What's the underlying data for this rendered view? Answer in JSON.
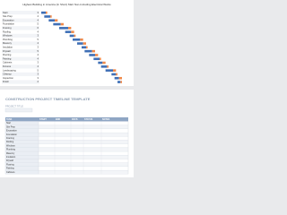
{
  "gantt": {
    "title": "Highest Building in America (In Short) Mart Non-Including Electrical Works",
    "xlim": [
      0,
      60
    ],
    "tasks": [
      {
        "name": "Start",
        "start": 0,
        "duration": 3,
        "delay": 1
      },
      {
        "name": "Site Prep",
        "start": 2,
        "duration": 4,
        "delay": 1
      },
      {
        "name": "Excavation",
        "start": 5,
        "duration": 4,
        "delay": 2
      },
      {
        "name": "Foundation",
        "start": 8,
        "duration": 5,
        "delay": 2
      },
      {
        "name": "Framing",
        "start": 12,
        "duration": 6,
        "delay": 2
      },
      {
        "name": "Roofing",
        "start": 16,
        "duration": 4,
        "delay": 2
      },
      {
        "name": "Windows",
        "start": 19,
        "duration": 3,
        "delay": 1
      },
      {
        "name": "Plumbing",
        "start": 21,
        "duration": 5,
        "delay": 2
      },
      {
        "name": "Masonry",
        "start": 24,
        "duration": 4,
        "delay": 2
      },
      {
        "name": "Insulation",
        "start": 27,
        "duration": 3,
        "delay": 1
      },
      {
        "name": "Drywall",
        "start": 29,
        "duration": 5,
        "delay": 2
      },
      {
        "name": "Flooring",
        "start": 32,
        "duration": 4,
        "delay": 2
      },
      {
        "name": "Painting",
        "start": 35,
        "duration": 4,
        "delay": 1
      },
      {
        "name": "Cabinets",
        "start": 38,
        "duration": 3,
        "delay": 2
      },
      {
        "name": "Fixtures",
        "start": 40,
        "duration": 4,
        "delay": 1
      },
      {
        "name": "Landscaping",
        "start": 43,
        "duration": 5,
        "delay": 2
      },
      {
        "name": "Cleanup",
        "start": 47,
        "duration": 3,
        "delay": 1
      },
      {
        "name": "Inspection",
        "start": 49,
        "duration": 3,
        "delay": 2
      },
      {
        "name": "Finish",
        "start": 51,
        "duration": 2,
        "delay": 1
      }
    ]
  },
  "template": {
    "title": "CONSTRUCTION PROJECT TIMELINE TEMPLATE",
    "subtitle": "PROJECT TITLE",
    "columns": [
      "TASK",
      "START",
      "END",
      "DAYS",
      "STATUS",
      "NOTES"
    ],
    "rows": [
      "Start",
      "Site Prep",
      "Excavation",
      "Foundation",
      "Framing",
      "Roofing",
      "Windows",
      "Plumbing",
      "Masonry",
      "Insulation",
      "Drywall",
      "Flooring",
      "Painting",
      "Cabinets",
      "Finish"
    ]
  }
}
